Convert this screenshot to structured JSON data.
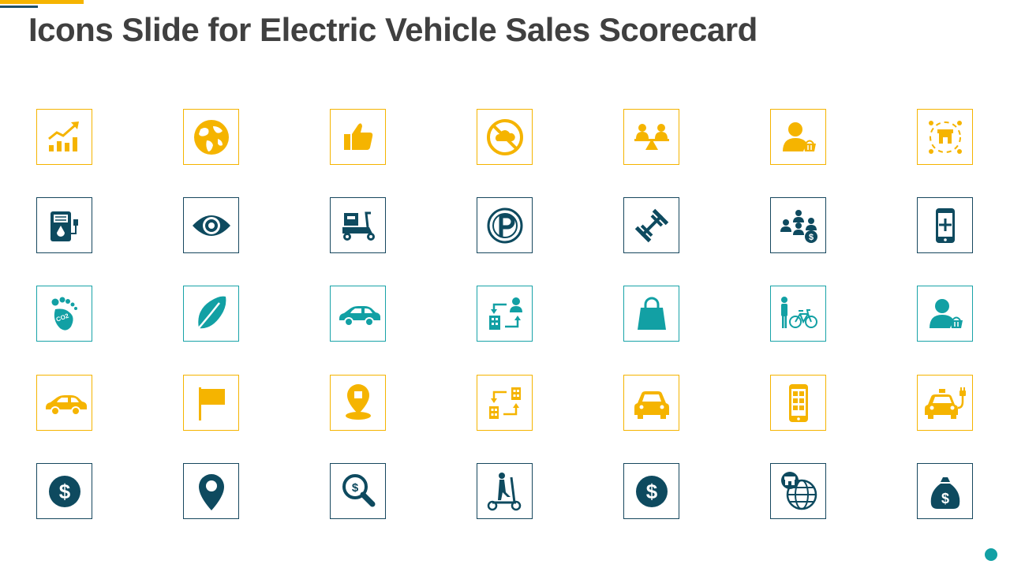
{
  "slide": {
    "title": "Icons Slide for Electric Vehicle Sales Scorecard"
  },
  "colors": {
    "yellow": "#F5B400",
    "navy": "#0E4A5F",
    "teal": "#12A0A4",
    "title_text": "#404040"
  },
  "icon_grid": {
    "rows": [
      {
        "color": "yellow",
        "icons": [
          "growth-chart-icon",
          "globe-icon",
          "thumbs-up-icon",
          "no-co2-icon",
          "balance-people-icon",
          "customer-basket-icon",
          "store-network-icon"
        ]
      },
      {
        "color": "navy",
        "icons": [
          "charging-station-icon",
          "eye-icon",
          "delivery-scooter-icon",
          "parking-icon",
          "dumbbell-icon",
          "team-dollar-icon",
          "mobile-add-icon"
        ]
      },
      {
        "color": "teal",
        "icons": [
          "co2-footprint-icon",
          "leaf-icon",
          "sedan-car-icon",
          "building-transfer-icon",
          "shopping-bag-icon",
          "person-bicycle-icon",
          "customer-basket-icon"
        ]
      },
      {
        "color": "yellow",
        "icons": [
          "side-car-icon",
          "flag-icon",
          "location-pin-icon",
          "buildings-transfer-icon",
          "car-front-icon",
          "mobile-apps-icon",
          "electric-car-plug-icon"
        ]
      },
      {
        "color": "navy",
        "icons": [
          "dollar-circle-icon",
          "map-pin-icon",
          "dollar-search-icon",
          "electric-scooter-icon",
          "dollar-circle-icon",
          "global-store-icon",
          "money-bag-icon"
        ]
      }
    ]
  }
}
